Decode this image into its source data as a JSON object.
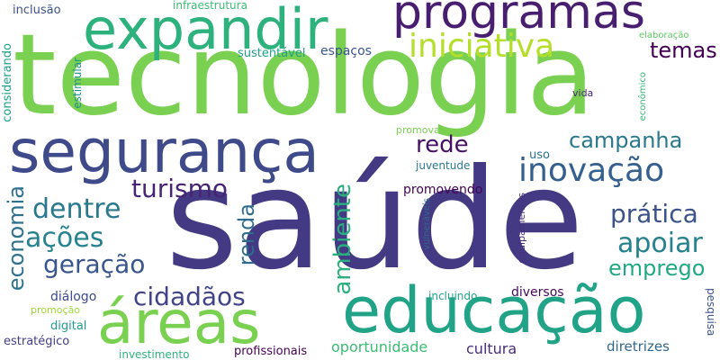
{
  "colors": {
    "background": "#ffffff",
    "palette": [
      "#440154",
      "#46327e",
      "#365c8d",
      "#277f8e",
      "#1fa187",
      "#4ac16d",
      "#a0da39",
      "#fde725"
    ]
  },
  "words": [
    {
      "id": "tecnologia",
      "text": "tecnologia",
      "color": "#7ad151"
    },
    {
      "id": "saude",
      "text": "saúde",
      "color": "#443983"
    },
    {
      "id": "seguranca",
      "text": "segurança",
      "color": "#3e4a89"
    },
    {
      "id": "expandir",
      "text": "expandir",
      "color": "#2db27d"
    },
    {
      "id": "programas",
      "text": "programas",
      "color": "#481f70"
    },
    {
      "id": "educacao",
      "text": "educação",
      "color": "#20a386"
    },
    {
      "id": "areas",
      "text": "áreas",
      "color": "#7ad151"
    },
    {
      "id": "iniciativa",
      "text": "iniciativa",
      "color": "#b5de2b"
    },
    {
      "id": "inovacao",
      "text": "inovação",
      "color": "#355f8d"
    },
    {
      "id": "temas",
      "text": "temas",
      "color": "#440154"
    },
    {
      "id": "campanha",
      "text": "campanha",
      "color": "#2a788e"
    },
    {
      "id": "rede",
      "text": "rede",
      "color": "#471164"
    },
    {
      "id": "turismo",
      "text": "turismo",
      "color": "#482475"
    },
    {
      "id": "dentre",
      "text": "dentre",
      "color": "#2a788e"
    },
    {
      "id": "pratica",
      "text": "prática",
      "color": "#3b528b"
    },
    {
      "id": "acoes",
      "text": "ações",
      "color": "#26828e"
    },
    {
      "id": "apoiar",
      "text": "apoiar",
      "color": "#26828e"
    },
    {
      "id": "geracao",
      "text": "geração",
      "color": "#39568c"
    },
    {
      "id": "emprego",
      "text": "emprego",
      "color": "#22a884"
    },
    {
      "id": "cidadaos",
      "text": "cidadãos",
      "color": "#414487"
    },
    {
      "id": "economia",
      "text": "economia",
      "color": "#2c718e"
    },
    {
      "id": "ambiente",
      "text": "ambiente",
      "color": "#2ab07f"
    },
    {
      "id": "renda",
      "text": "renda",
      "color": "#2f6c8e"
    },
    {
      "id": "promovendo",
      "text": "promovendo",
      "color": "#440154"
    },
    {
      "id": "diversos",
      "text": "diversos",
      "color": "#46085c"
    },
    {
      "id": "oportunidade",
      "text": "oportunidade",
      "color": "#3bbb75"
    },
    {
      "id": "cultura",
      "text": "cultura",
      "color": "#472d7b"
    },
    {
      "id": "diretrizes",
      "text": "diretrizes",
      "color": "#31688e"
    },
    {
      "id": "inclusao",
      "text": "inclusão",
      "color": "#3b528b"
    },
    {
      "id": "infraestrutura",
      "text": "infraestrutura",
      "color": "#3bbb75"
    },
    {
      "id": "sustentavel",
      "text": "sustentável",
      "color": "#1f9e89"
    },
    {
      "id": "espacos",
      "text": "espaços",
      "color": "#39568c"
    },
    {
      "id": "juventude",
      "text": "juventude",
      "color": "#2a788e"
    },
    {
      "id": "uso",
      "text": "uso",
      "color": "#2c718e"
    },
    {
      "id": "promovam",
      "text": "promovam",
      "color": "#7ad151"
    },
    {
      "id": "vida",
      "text": "vida",
      "color": "#482878"
    },
    {
      "id": "elaboracao",
      "text": "elaboração",
      "color": "#5ec962"
    },
    {
      "id": "economico",
      "text": "econômico",
      "color": "#35b779"
    },
    {
      "id": "considerando",
      "text": "considerando",
      "color": "#1fa188"
    },
    {
      "id": "estimular",
      "text": "estimular",
      "color": "#21918c"
    },
    {
      "id": "vulneraveis",
      "text": "vulneráveis",
      "color": "#31688e"
    },
    {
      "id": "equipamentos",
      "text": "equipamentos",
      "color": "#46327e"
    },
    {
      "id": "dialogo",
      "text": "diálogo",
      "color": "#3e4a89"
    },
    {
      "id": "promocao",
      "text": "promoção",
      "color": "#a0da39"
    },
    {
      "id": "digital",
      "text": "digital",
      "color": "#1f9e89"
    },
    {
      "id": "estrategico",
      "text": "estratégico",
      "color": "#433e85"
    },
    {
      "id": "investimento",
      "text": "investimento",
      "color": "#2db27d"
    },
    {
      "id": "profissionais",
      "text": "profissionais",
      "color": "#440154"
    },
    {
      "id": "incluindo",
      "text": "incluindo",
      "color": "#20a386"
    },
    {
      "id": "pesquisa",
      "text": "pesquisa",
      "color": "#3b528b"
    }
  ]
}
